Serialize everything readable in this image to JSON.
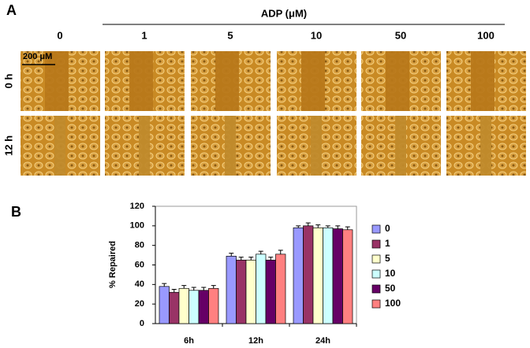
{
  "panel_a": {
    "label": "A",
    "treatment_label": "ADP (μM)",
    "columns": [
      "0",
      "1",
      "5",
      "10",
      "50",
      "100"
    ],
    "rows": [
      "0 h",
      "12 h"
    ],
    "scale_bar": "200 μM"
  },
  "chart_data": {
    "type": "bar",
    "panel_label": "B",
    "y_label": "% Repaired",
    "categories": [
      "6h",
      "12h",
      "24h"
    ],
    "series": [
      {
        "name": "0",
        "color": "#9999ff",
        "values": [
          38,
          69,
          98
        ],
        "errors": [
          3,
          3,
          2
        ]
      },
      {
        "name": "1",
        "color": "#993366",
        "values": [
          32,
          65,
          100
        ],
        "errors": [
          3,
          3,
          3
        ]
      },
      {
        "name": "5",
        "color": "#ffffcc",
        "values": [
          36,
          65,
          98
        ],
        "errors": [
          3,
          3,
          3
        ]
      },
      {
        "name": "10",
        "color": "#ccffff",
        "values": [
          34,
          71,
          98
        ],
        "errors": [
          3,
          3,
          2
        ]
      },
      {
        "name": "50",
        "color": "#660066",
        "values": [
          34,
          65,
          97
        ],
        "errors": [
          3,
          3,
          3
        ]
      },
      {
        "name": "100",
        "color": "#ff8080",
        "values": [
          36,
          71,
          96
        ],
        "errors": [
          3,
          4,
          3
        ]
      }
    ],
    "ylim": [
      0,
      120
    ],
    "yticks": [
      0,
      20,
      40,
      60,
      80,
      100,
      120
    ],
    "legend": "right"
  }
}
